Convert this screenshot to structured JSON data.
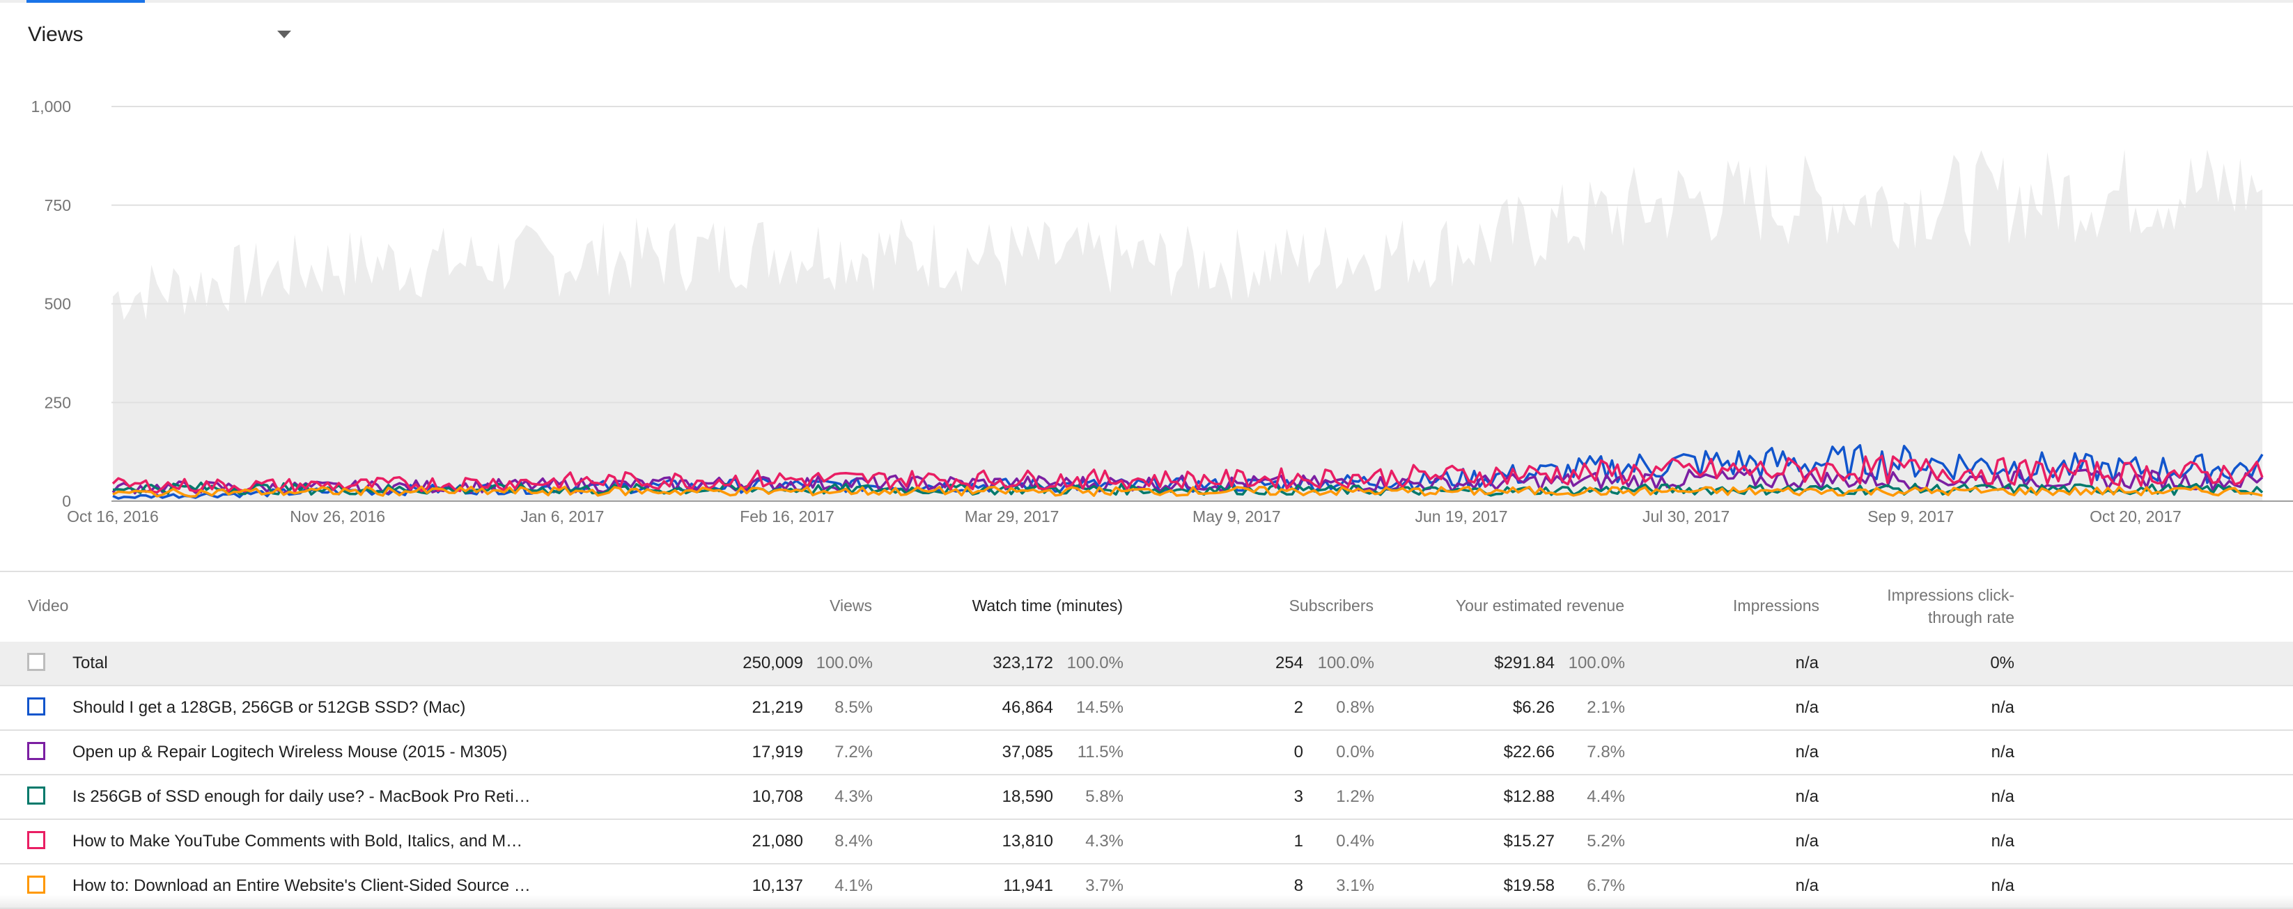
{
  "metric_selector": {
    "label": "Views",
    "icon": "caret-down-icon"
  },
  "chart_data": {
    "type": "line",
    "title": "",
    "xlabel": "",
    "ylabel": "",
    "x_start": "2016-10-16",
    "x_end": "2017-11-15",
    "x_tick_labels": [
      "Oct 16, 2016",
      "Nov 26, 2016",
      "Jan 6, 2017",
      "Feb 16, 2017",
      "Mar 29, 2017",
      "May 9, 2017",
      "Jun 19, 2017",
      "Jul 30, 2017",
      "Sep 9, 2017",
      "Oct 20, 2017"
    ],
    "y_ticks": [
      0,
      250,
      500,
      750,
      1000
    ],
    "y_tick_labels": [
      "0",
      "250",
      "500",
      "750",
      "1,000"
    ],
    "ylim": [
      0,
      1000
    ],
    "grid": true,
    "series": [
      {
        "total_views": true,
        "color": "#ececec",
        "type": "area",
        "x": [
          "2016-10-16",
          "2016-11-26",
          "2017-01-06",
          "2017-02-16",
          "2017-03-29",
          "2017-05-09",
          "2017-06-19",
          "2017-07-30",
          "2017-09-09",
          "2017-10-20",
          "2017-11-15"
        ],
        "values": [
          520,
          600,
          610,
          640,
          620,
          600,
          640,
          760,
          760,
          780,
          800
        ]
      },
      {
        "color": "#1155cc",
        "x": [
          "2016-10-16",
          "2016-11-26",
          "2017-01-06",
          "2017-02-16",
          "2017-03-29",
          "2017-05-09",
          "2017-06-19",
          "2017-07-30",
          "2017-09-09",
          "2017-10-20",
          "2017-11-15"
        ],
        "values": [
          10,
          25,
          35,
          40,
          40,
          40,
          55,
          95,
          100,
          80,
          85
        ]
      },
      {
        "color": "#7b1fa2",
        "x": [
          "2016-10-16",
          "2016-11-26",
          "2017-01-06",
          "2017-02-16",
          "2017-03-29",
          "2017-05-09",
          "2017-06-19",
          "2017-07-30",
          "2017-09-09",
          "2017-10-20",
          "2017-11-15"
        ],
        "values": [
          35,
          35,
          40,
          45,
          45,
          45,
          45,
          55,
          55,
          55,
          50
        ]
      },
      {
        "color": "#00796b",
        "x": [
          "2016-10-16",
          "2016-11-26",
          "2017-01-06",
          "2017-02-16",
          "2017-03-29",
          "2017-05-09",
          "2017-06-19",
          "2017-07-30",
          "2017-09-09",
          "2017-10-20",
          "2017-11-15"
        ],
        "values": [
          35,
          30,
          30,
          30,
          30,
          30,
          25,
          30,
          30,
          30,
          30
        ]
      },
      {
        "color": "#e91e63",
        "x": [
          "2016-10-16",
          "2016-11-26",
          "2017-01-06",
          "2017-02-16",
          "2017-03-29",
          "2017-05-09",
          "2017-06-19",
          "2017-07-30",
          "2017-09-09",
          "2017-10-20",
          "2017-11-15"
        ],
        "values": [
          40,
          40,
          50,
          55,
          55,
          55,
          65,
          75,
          80,
          70,
          70
        ]
      },
      {
        "color": "#ff9800",
        "x": [
          "2016-10-16",
          "2016-11-26",
          "2017-01-06",
          "2017-02-16",
          "2017-03-29",
          "2017-05-09",
          "2017-06-19",
          "2017-07-30",
          "2017-09-09",
          "2017-10-20",
          "2017-11-15"
        ],
        "values": [
          20,
          25,
          25,
          25,
          25,
          25,
          25,
          25,
          25,
          25,
          25
        ]
      }
    ]
  },
  "table": {
    "headers": {
      "video": "Video",
      "views": "Views",
      "watch_time": "Watch time (minutes)",
      "subscribers": "Subscribers",
      "revenue": "Your estimated revenue",
      "impressions": "Impressions",
      "ctr_line1": "Impressions click-",
      "ctr_line2": "through rate"
    },
    "total": {
      "title": "Total",
      "checkbox_color": "#bdbdbd",
      "views": "250,009",
      "views_pct": "100.0%",
      "watch": "323,172",
      "watch_pct": "100.0%",
      "subs": "254",
      "subs_pct": "100.0%",
      "revenue": "$291.84",
      "revenue_pct": "100.0%",
      "impressions": "n/a",
      "ctr": "0%"
    },
    "rows": [
      {
        "title": "Should I get a 128GB, 256GB or 512GB SSD? (Mac)",
        "checkbox_color": "#1155cc",
        "views": "21,219",
        "views_pct": "8.5%",
        "watch": "46,864",
        "watch_pct": "14.5%",
        "subs": "2",
        "subs_pct": "0.8%",
        "revenue": "$6.26",
        "revenue_pct": "2.1%",
        "impressions": "n/a",
        "ctr": "n/a"
      },
      {
        "title": "Open up & Repair Logitech Wireless Mouse (2015 - M305)",
        "checkbox_color": "#7b1fa2",
        "views": "17,919",
        "views_pct": "7.2%",
        "watch": "37,085",
        "watch_pct": "11.5%",
        "subs": "0",
        "subs_pct": "0.0%",
        "revenue": "$22.66",
        "revenue_pct": "7.8%",
        "impressions": "n/a",
        "ctr": "n/a"
      },
      {
        "title": "Is 256GB of SSD enough for daily use? - MacBook Pro Reti…",
        "checkbox_color": "#00796b",
        "views": "10,708",
        "views_pct": "4.3%",
        "watch": "18,590",
        "watch_pct": "5.8%",
        "subs": "3",
        "subs_pct": "1.2%",
        "revenue": "$12.88",
        "revenue_pct": "4.4%",
        "impressions": "n/a",
        "ctr": "n/a"
      },
      {
        "title": "How to Make YouTube Comments with Bold, Italics, and M…",
        "checkbox_color": "#e91e63",
        "views": "21,080",
        "views_pct": "8.4%",
        "watch": "13,810",
        "watch_pct": "4.3%",
        "subs": "1",
        "subs_pct": "0.4%",
        "revenue": "$15.27",
        "revenue_pct": "5.2%",
        "impressions": "n/a",
        "ctr": "n/a"
      },
      {
        "title": "How to: Download an Entire Website's Client-Sided Source …",
        "checkbox_color": "#ff9800",
        "views": "10,137",
        "views_pct": "4.1%",
        "watch": "11,941",
        "watch_pct": "3.7%",
        "subs": "8",
        "subs_pct": "3.1%",
        "revenue": "$19.58",
        "revenue_pct": "6.7%",
        "impressions": "n/a",
        "ctr": "n/a"
      }
    ]
  }
}
